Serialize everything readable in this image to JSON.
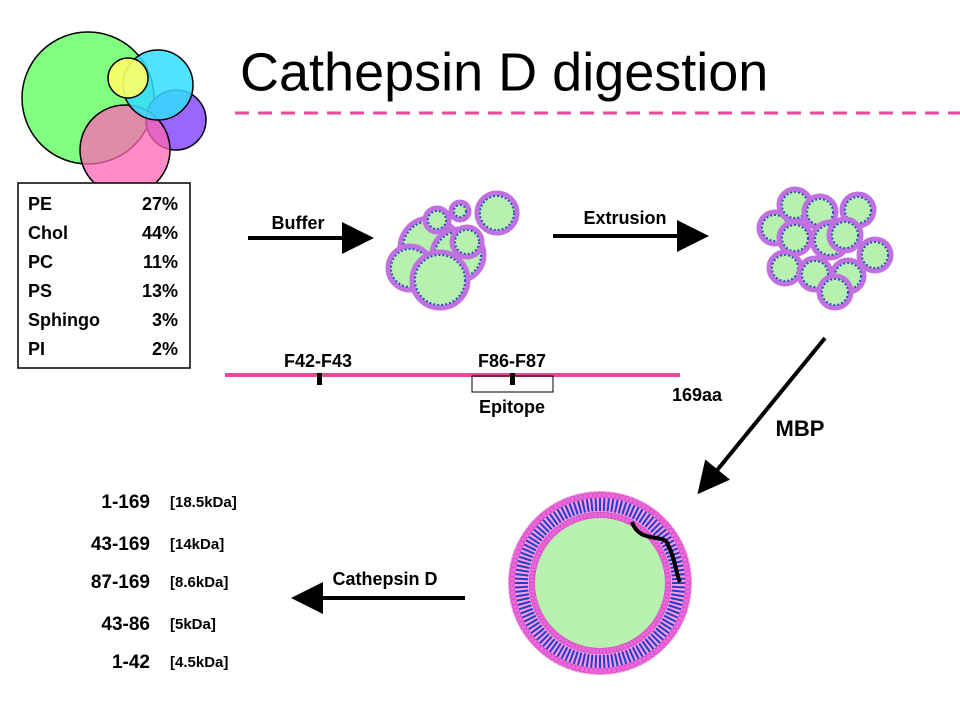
{
  "title": "Cathepsin D digestion",
  "composition": [
    [
      "PE",
      "27%"
    ],
    [
      "Chol",
      "44%"
    ],
    [
      "PC",
      "11%"
    ],
    [
      "PS",
      "13%"
    ],
    [
      "Sphingo",
      "3%"
    ],
    [
      "PI",
      "2%"
    ]
  ],
  "steps": {
    "buffer": "Buffer",
    "extrusion": "Extrusion",
    "mbp": "MBP",
    "cathepsin": "Cathepsin D"
  },
  "protein": {
    "site1": "F42-F43",
    "site2": "F86-F87",
    "epitope": "Epitope",
    "length": "169aa"
  },
  "fragments": [
    [
      "1-169",
      "[18.5kDa]"
    ],
    [
      "43-169",
      "[14kDa]"
    ],
    [
      "87-169",
      "[8.6kDa]"
    ],
    [
      "43-86",
      "[5kDa]"
    ],
    [
      "1-42",
      "[4.5kDa]"
    ]
  ]
}
